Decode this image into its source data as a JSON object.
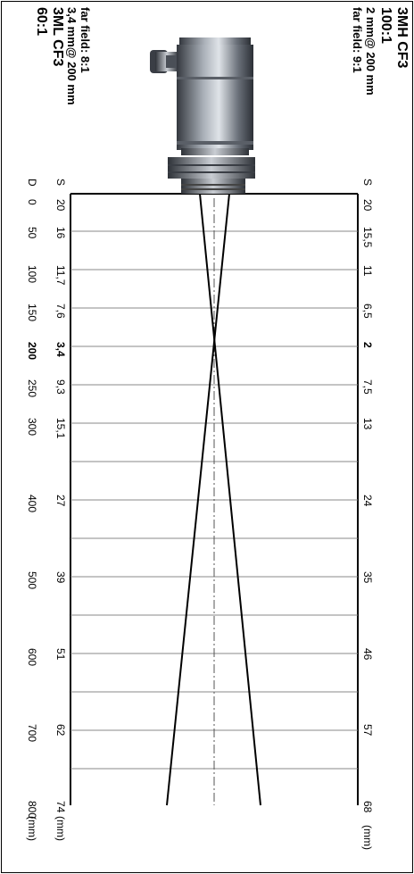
{
  "sensor_top": {
    "model": "3MH CF3",
    "ratio": "100:1",
    "spot": "2 mm@ 200 mm",
    "far_field": "far field: 9:1"
  },
  "sensor_bottom": {
    "far_field": "far field: 8:1",
    "spot": "3,4 mm@ 200 mm",
    "model": "3ML CF3",
    "ratio": "60:1"
  },
  "scale_D": {
    "label": "D",
    "unit": "(mm)",
    "ticks": [
      "0",
      "50",
      "100",
      "150",
      "200",
      "250",
      "300",
      "400",
      "500",
      "600",
      "700",
      "800"
    ]
  },
  "scale_S_bottom": {
    "label": "S",
    "ticks": [
      "20",
      "16",
      "11,7",
      "7,6",
      "3,4",
      "9,3",
      "15,1",
      "27",
      "39",
      "51",
      "62",
      "74"
    ],
    "unit": "(mm)"
  },
  "scale_S_top": {
    "label": "S",
    "ticks": [
      "20",
      "15,5",
      "11",
      "6,5",
      "2",
      "7,5",
      "13",
      "24",
      "35",
      "46",
      "57",
      "68"
    ],
    "unit": "(mm)"
  },
  "colors": {
    "line": "#000000",
    "grid": "#888888",
    "housing_dark": "#3c4048",
    "housing_light": "#b9bec6"
  }
}
